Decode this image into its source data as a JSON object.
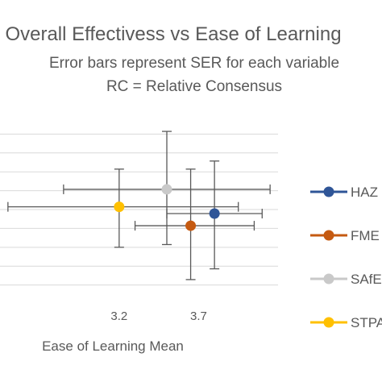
{
  "chart_data": {
    "type": "scatter",
    "title": "Overall Effectivess vs Ease of Learning",
    "subtitle_lines": [
      "Error bars represent SER for each variable",
      "RC = Relative Consensus"
    ],
    "xlabel": "Ease of Learning Mean",
    "ylabel": "",
    "xlim": [
      2.45,
      4.2
    ],
    "ylim": [
      3.01,
      3.65
    ],
    "x_ticks": [
      3.2,
      3.7
    ],
    "x_tick_labels": [
      "3.2",
      "3.7"
    ],
    "y_gridlines": [
      3.05,
      3.12,
      3.19,
      3.26,
      3.33,
      3.4,
      3.47,
      3.54,
      3.61
    ],
    "grid": true,
    "legend_position": "right",
    "series": [
      {
        "name": "HAZ",
        "color": "#2f5597",
        "x": 3.8,
        "y": 3.315,
        "x_err": [
          3.5,
          4.1
        ],
        "y_err": [
          3.11,
          3.51
        ]
      },
      {
        "name": "FME",
        "color": "#c55a11",
        "x": 3.65,
        "y": 3.27,
        "x_err": [
          3.3,
          4.05
        ],
        "y_err": [
          3.07,
          3.48
        ]
      },
      {
        "name": "SAfE",
        "color": "#c9c9c9",
        "x": 3.5,
        "y": 3.405,
        "x_err": [
          2.85,
          4.15
        ],
        "y_err": [
          3.2,
          3.62
        ]
      },
      {
        "name": "STPA",
        "color": "#ffc000",
        "x": 3.2,
        "y": 3.34,
        "x_err": [
          2.5,
          3.95
        ],
        "y_err": [
          3.19,
          3.48
        ]
      }
    ]
  }
}
